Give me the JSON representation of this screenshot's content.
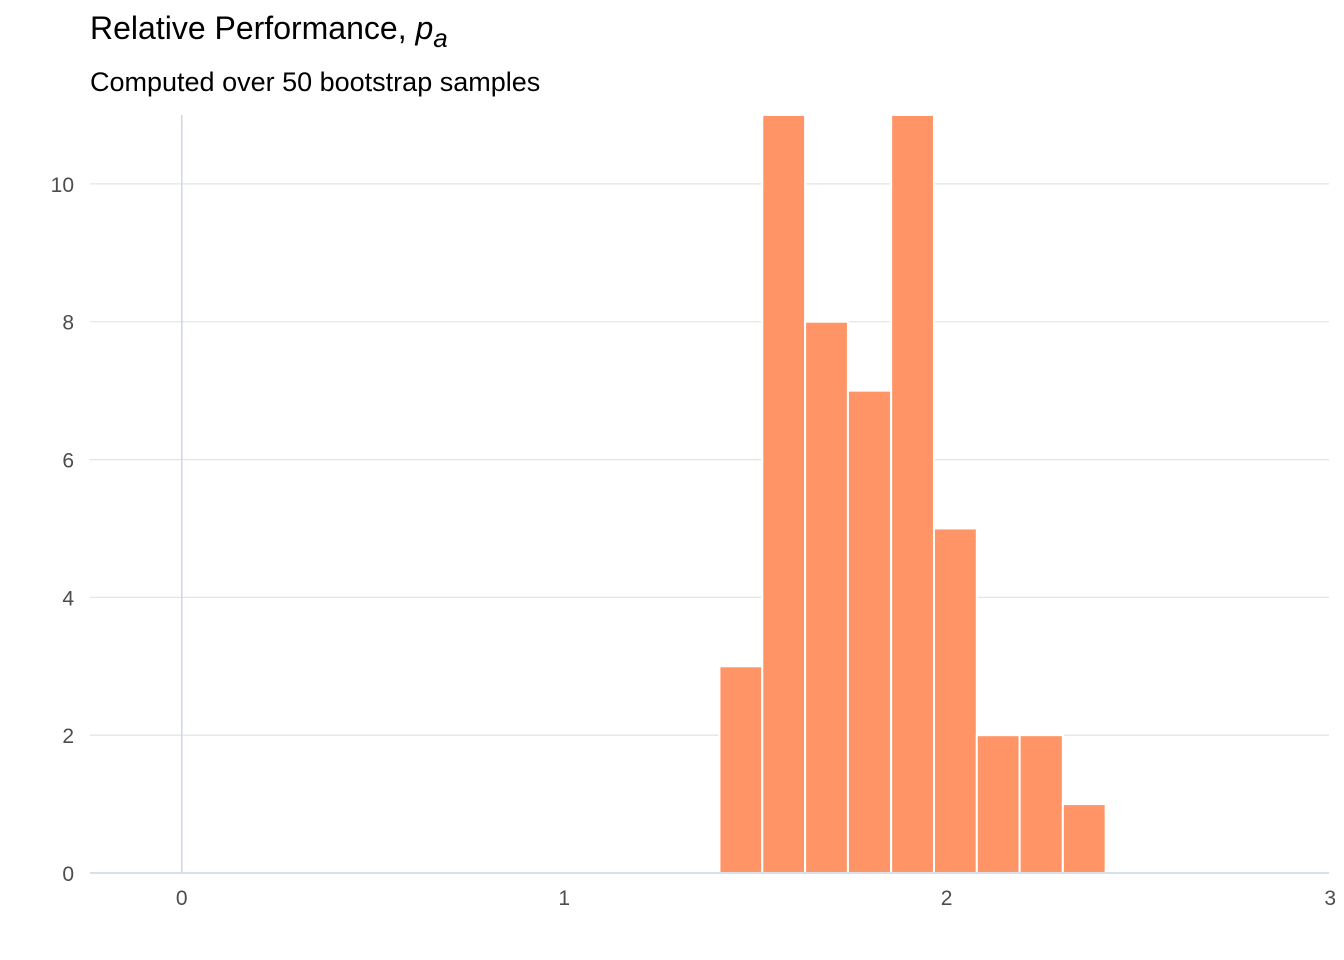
{
  "chart_data": {
    "type": "bar",
    "title": {
      "text": "Relative Performance, ",
      "variable": "p",
      "subscript": "a"
    },
    "subtitle": "Computed over 50 bootstrap samples",
    "xlabel": "",
    "ylabel": "",
    "xlim": [
      -0.24,
      3.0
    ],
    "ylim": [
      0,
      11
    ],
    "x_ticks": [
      0,
      1,
      2,
      3
    ],
    "y_ticks": [
      0,
      2,
      4,
      6,
      8,
      10
    ],
    "bin_width": 0.1122,
    "bins": [
      {
        "x0": 1.406,
        "x1": 1.518,
        "count": 3
      },
      {
        "x0": 1.518,
        "x1": 1.63,
        "count": 11
      },
      {
        "x0": 1.63,
        "x1": 1.742,
        "count": 8
      },
      {
        "x0": 1.742,
        "x1": 1.855,
        "count": 7
      },
      {
        "x0": 1.855,
        "x1": 1.967,
        "count": 11
      },
      {
        "x0": 1.967,
        "x1": 2.079,
        "count": 5
      },
      {
        "x0": 2.079,
        "x1": 2.191,
        "count": 2
      },
      {
        "x0": 2.191,
        "x1": 2.304,
        "count": 2
      },
      {
        "x0": 2.304,
        "x1": 2.416,
        "count": 1
      }
    ],
    "grid": "horizontal",
    "colors": {
      "bar": "#FF9566",
      "bar_edge": "#ffffff",
      "grid": "#E1E6EB",
      "axis": "#CBD7E2"
    }
  }
}
